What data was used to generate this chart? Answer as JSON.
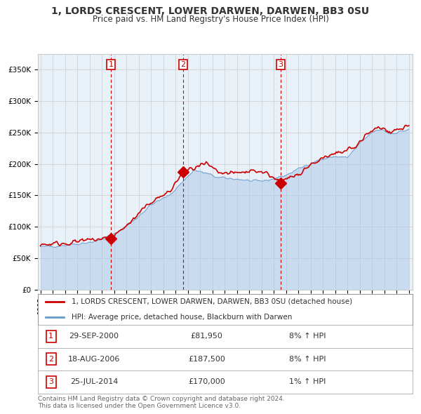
{
  "title": "1, LORDS CRESCENT, LOWER DARWEN, DARWEN, BB3 0SU",
  "subtitle": "Price paid vs. HM Land Registry's House Price Index (HPI)",
  "legend_property": "1, LORDS CRESCENT, LOWER DARWEN, DARWEN, BB3 0SU (detached house)",
  "legend_hpi": "HPI: Average price, detached house, Blackburn with Darwen",
  "transactions": [
    {
      "label": "1",
      "date": 2000.75,
      "price": 81950
    },
    {
      "label": "2",
      "date": 2006.63,
      "price": 187500
    },
    {
      "label": "3",
      "date": 2014.56,
      "price": 170000
    }
  ],
  "table_rows": [
    {
      "num": "1",
      "date": "29-SEP-2000",
      "price": "£81,950",
      "note": "8% ↑ HPI"
    },
    {
      "num": "2",
      "date": "18-AUG-2006",
      "price": "£187,500",
      "note": "8% ↑ HPI"
    },
    {
      "num": "3",
      "date": "25-JUL-2014",
      "price": "£170,000",
      "note": "1% ↑ HPI"
    }
  ],
  "footer": "Contains HM Land Registry data © Crown copyright and database right 2024.\nThis data is licensed under the Open Government Licence v3.0.",
  "ylim": [
    0,
    375000
  ],
  "yticks": [
    0,
    50000,
    100000,
    150000,
    200000,
    250000,
    300000,
    350000
  ],
  "property_color": "#cc0000",
  "hpi_color": "#aac8e8",
  "hpi_line_color": "#6699cc",
  "bg_color": "#e8f0f8",
  "grid_color": "#cccccc",
  "vline_color": "#cc0000",
  "box_color": "#cc0000"
}
